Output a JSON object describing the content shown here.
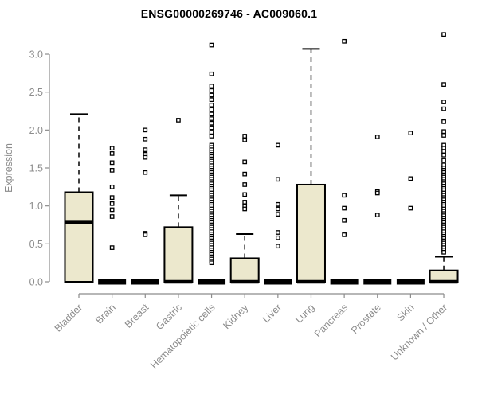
{
  "page": {
    "title": "ENSG00000269746 - AC009060.1"
  },
  "chart_data": {
    "type": "boxplot",
    "title": "ENSG00000269746 - AC009060.1",
    "xlabel": "",
    "ylabel": "Expression",
    "ylim": [
      0,
      3.3
    ],
    "yticks": [
      0.0,
      0.5,
      1.0,
      1.5,
      2.0,
      2.5,
      3.0
    ],
    "grid": false,
    "legend": "none",
    "box_fill_color": "#ece8cd",
    "box_stroke_color": "#000000",
    "axis_color": "#8c8c8c",
    "label_color": "#8c8c8c",
    "title_color": "#000000",
    "outlier_marker": "open-square",
    "categories": [
      "Bladder",
      "Brain",
      "Breast",
      "Gastric",
      "Hematopoietic cells",
      "Kidney",
      "Liver",
      "Lung",
      "Pancreas",
      "Prostate",
      "Skin",
      "Unknown / Other"
    ],
    "boxes": [
      {
        "category": "Bladder",
        "q1": 0,
        "median": 0.78,
        "q3": 1.18,
        "whisker_low": 0,
        "whisker_high": 2.21,
        "outliers": []
      },
      {
        "category": "Brain",
        "q1": 0,
        "median": 0,
        "q3": 0,
        "whisker_low": 0,
        "whisker_high": 0,
        "outliers": [
          1.76,
          1.69,
          1.57,
          1.47,
          1.25,
          1.11,
          1.03,
          0.95,
          0.86,
          0.45
        ]
      },
      {
        "category": "Breast",
        "q1": 0,
        "median": 0,
        "q3": 0,
        "whisker_low": 0,
        "whisker_high": 0,
        "outliers": [
          2.0,
          1.88,
          1.74,
          1.68,
          1.64,
          1.44,
          0.64,
          0.62
        ]
      },
      {
        "category": "Gastric",
        "q1": 0,
        "median": 0,
        "q3": 0.72,
        "whisker_low": 0,
        "whisker_high": 1.14,
        "outliers": [
          2.13
        ]
      },
      {
        "category": "Hematopoietic cells",
        "q1": 0,
        "median": 0,
        "q3": 0,
        "whisker_low": 0,
        "whisker_high": 0,
        "outliers": [
          3.12,
          2.74,
          2.58,
          2.52,
          2.46,
          2.4,
          2.33,
          2.27,
          2.21,
          2.15,
          2.09,
          2.03,
          1.97,
          1.92,
          1.8,
          1.77,
          1.74,
          1.71,
          1.68,
          1.65,
          1.62,
          1.59,
          1.56,
          1.53,
          1.5,
          1.47,
          1.44,
          1.41,
          1.38,
          1.35,
          1.32,
          1.29,
          1.26,
          1.23,
          1.2,
          1.17,
          1.14,
          1.11,
          1.08,
          1.05,
          1.02,
          0.99,
          0.96,
          0.93,
          0.9,
          0.87,
          0.84,
          0.81,
          0.78,
          0.75,
          0.72,
          0.69,
          0.66,
          0.63,
          0.6,
          0.57,
          0.54,
          0.51,
          0.48,
          0.45,
          0.42,
          0.39,
          0.36,
          0.33,
          0.3,
          0.27,
          0.25
        ]
      },
      {
        "category": "Kidney",
        "q1": 0,
        "median": 0,
        "q3": 0.31,
        "whisker_low": 0,
        "whisker_high": 0.63,
        "outliers": [
          1.92,
          1.87,
          1.58,
          1.42,
          1.28,
          1.15,
          1.05,
          1.0,
          0.96
        ]
      },
      {
        "category": "Liver",
        "q1": 0,
        "median": 0,
        "q3": 0,
        "whisker_low": 0,
        "whisker_high": 0,
        "outliers": [
          1.8,
          1.35,
          1.02,
          0.96,
          0.89,
          0.65,
          0.58,
          0.47
        ]
      },
      {
        "category": "Lung",
        "q1": 0,
        "median": 0,
        "q3": 1.28,
        "whisker_low": 0,
        "whisker_high": 3.07,
        "outliers": []
      },
      {
        "category": "Pancreas",
        "q1": 0,
        "median": 0,
        "q3": 0,
        "whisker_low": 0,
        "whisker_high": 0,
        "outliers": [
          3.17,
          1.14,
          0.97,
          0.81,
          0.62
        ]
      },
      {
        "category": "Prostate",
        "q1": 0,
        "median": 0,
        "q3": 0,
        "whisker_low": 0,
        "whisker_high": 0,
        "outliers": [
          1.91,
          1.19,
          1.17,
          0.88
        ]
      },
      {
        "category": "Skin",
        "q1": 0,
        "median": 0,
        "q3": 0,
        "whisker_low": 0,
        "whisker_high": 0,
        "outliers": [
          1.96,
          1.36,
          0.97
        ]
      },
      {
        "category": "Unknown / Other",
        "q1": 0,
        "median": 0,
        "q3": 0.15,
        "whisker_low": 0,
        "whisker_high": 0.33,
        "outliers": [
          3.26,
          2.6,
          2.37,
          2.28,
          2.11,
          1.98,
          1.93,
          1.8,
          1.76,
          1.72,
          1.67,
          1.6,
          1.54,
          1.5,
          1.47,
          1.44,
          1.41,
          1.38,
          1.35,
          1.32,
          1.29,
          1.26,
          1.23,
          1.2,
          1.17,
          1.14,
          1.11,
          1.08,
          1.05,
          1.02,
          0.99,
          0.96,
          0.93,
          0.9,
          0.87,
          0.84,
          0.81,
          0.78,
          0.75,
          0.72,
          0.69,
          0.66,
          0.63,
          0.6,
          0.57,
          0.54,
          0.51,
          0.48,
          0.45,
          0.42,
          0.39
        ]
      }
    ]
  }
}
